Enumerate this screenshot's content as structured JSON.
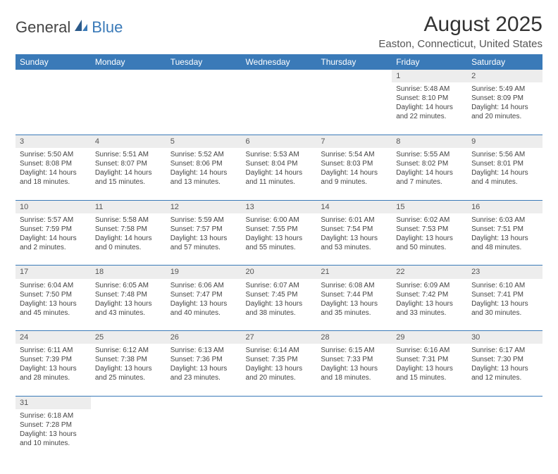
{
  "logo": {
    "text1": "General",
    "text2": "Blue"
  },
  "title": "August 2025",
  "location": "Easton, Connecticut, United States",
  "colors": {
    "header_bg": "#3a7ab8",
    "header_fg": "#ffffff",
    "daynum_bg": "#ededed",
    "border": "#3a7ab8"
  },
  "weekdays": [
    "Sunday",
    "Monday",
    "Tuesday",
    "Wednesday",
    "Thursday",
    "Friday",
    "Saturday"
  ],
  "weeks": [
    [
      null,
      null,
      null,
      null,
      null,
      {
        "n": "1",
        "sr": "Sunrise: 5:48 AM",
        "ss": "Sunset: 8:10 PM",
        "dl": "Daylight: 14 hours and 22 minutes."
      },
      {
        "n": "2",
        "sr": "Sunrise: 5:49 AM",
        "ss": "Sunset: 8:09 PM",
        "dl": "Daylight: 14 hours and 20 minutes."
      }
    ],
    [
      {
        "n": "3",
        "sr": "Sunrise: 5:50 AM",
        "ss": "Sunset: 8:08 PM",
        "dl": "Daylight: 14 hours and 18 minutes."
      },
      {
        "n": "4",
        "sr": "Sunrise: 5:51 AM",
        "ss": "Sunset: 8:07 PM",
        "dl": "Daylight: 14 hours and 15 minutes."
      },
      {
        "n": "5",
        "sr": "Sunrise: 5:52 AM",
        "ss": "Sunset: 8:06 PM",
        "dl": "Daylight: 14 hours and 13 minutes."
      },
      {
        "n": "6",
        "sr": "Sunrise: 5:53 AM",
        "ss": "Sunset: 8:04 PM",
        "dl": "Daylight: 14 hours and 11 minutes."
      },
      {
        "n": "7",
        "sr": "Sunrise: 5:54 AM",
        "ss": "Sunset: 8:03 PM",
        "dl": "Daylight: 14 hours and 9 minutes."
      },
      {
        "n": "8",
        "sr": "Sunrise: 5:55 AM",
        "ss": "Sunset: 8:02 PM",
        "dl": "Daylight: 14 hours and 7 minutes."
      },
      {
        "n": "9",
        "sr": "Sunrise: 5:56 AM",
        "ss": "Sunset: 8:01 PM",
        "dl": "Daylight: 14 hours and 4 minutes."
      }
    ],
    [
      {
        "n": "10",
        "sr": "Sunrise: 5:57 AM",
        "ss": "Sunset: 7:59 PM",
        "dl": "Daylight: 14 hours and 2 minutes."
      },
      {
        "n": "11",
        "sr": "Sunrise: 5:58 AM",
        "ss": "Sunset: 7:58 PM",
        "dl": "Daylight: 14 hours and 0 minutes."
      },
      {
        "n": "12",
        "sr": "Sunrise: 5:59 AM",
        "ss": "Sunset: 7:57 PM",
        "dl": "Daylight: 13 hours and 57 minutes."
      },
      {
        "n": "13",
        "sr": "Sunrise: 6:00 AM",
        "ss": "Sunset: 7:55 PM",
        "dl": "Daylight: 13 hours and 55 minutes."
      },
      {
        "n": "14",
        "sr": "Sunrise: 6:01 AM",
        "ss": "Sunset: 7:54 PM",
        "dl": "Daylight: 13 hours and 53 minutes."
      },
      {
        "n": "15",
        "sr": "Sunrise: 6:02 AM",
        "ss": "Sunset: 7:53 PM",
        "dl": "Daylight: 13 hours and 50 minutes."
      },
      {
        "n": "16",
        "sr": "Sunrise: 6:03 AM",
        "ss": "Sunset: 7:51 PM",
        "dl": "Daylight: 13 hours and 48 minutes."
      }
    ],
    [
      {
        "n": "17",
        "sr": "Sunrise: 6:04 AM",
        "ss": "Sunset: 7:50 PM",
        "dl": "Daylight: 13 hours and 45 minutes."
      },
      {
        "n": "18",
        "sr": "Sunrise: 6:05 AM",
        "ss": "Sunset: 7:48 PM",
        "dl": "Daylight: 13 hours and 43 minutes."
      },
      {
        "n": "19",
        "sr": "Sunrise: 6:06 AM",
        "ss": "Sunset: 7:47 PM",
        "dl": "Daylight: 13 hours and 40 minutes."
      },
      {
        "n": "20",
        "sr": "Sunrise: 6:07 AM",
        "ss": "Sunset: 7:45 PM",
        "dl": "Daylight: 13 hours and 38 minutes."
      },
      {
        "n": "21",
        "sr": "Sunrise: 6:08 AM",
        "ss": "Sunset: 7:44 PM",
        "dl": "Daylight: 13 hours and 35 minutes."
      },
      {
        "n": "22",
        "sr": "Sunrise: 6:09 AM",
        "ss": "Sunset: 7:42 PM",
        "dl": "Daylight: 13 hours and 33 minutes."
      },
      {
        "n": "23",
        "sr": "Sunrise: 6:10 AM",
        "ss": "Sunset: 7:41 PM",
        "dl": "Daylight: 13 hours and 30 minutes."
      }
    ],
    [
      {
        "n": "24",
        "sr": "Sunrise: 6:11 AM",
        "ss": "Sunset: 7:39 PM",
        "dl": "Daylight: 13 hours and 28 minutes."
      },
      {
        "n": "25",
        "sr": "Sunrise: 6:12 AM",
        "ss": "Sunset: 7:38 PM",
        "dl": "Daylight: 13 hours and 25 minutes."
      },
      {
        "n": "26",
        "sr": "Sunrise: 6:13 AM",
        "ss": "Sunset: 7:36 PM",
        "dl": "Daylight: 13 hours and 23 minutes."
      },
      {
        "n": "27",
        "sr": "Sunrise: 6:14 AM",
        "ss": "Sunset: 7:35 PM",
        "dl": "Daylight: 13 hours and 20 minutes."
      },
      {
        "n": "28",
        "sr": "Sunrise: 6:15 AM",
        "ss": "Sunset: 7:33 PM",
        "dl": "Daylight: 13 hours and 18 minutes."
      },
      {
        "n": "29",
        "sr": "Sunrise: 6:16 AM",
        "ss": "Sunset: 7:31 PM",
        "dl": "Daylight: 13 hours and 15 minutes."
      },
      {
        "n": "30",
        "sr": "Sunrise: 6:17 AM",
        "ss": "Sunset: 7:30 PM",
        "dl": "Daylight: 13 hours and 12 minutes."
      }
    ],
    [
      {
        "n": "31",
        "sr": "Sunrise: 6:18 AM",
        "ss": "Sunset: 7:28 PM",
        "dl": "Daylight: 13 hours and 10 minutes."
      },
      null,
      null,
      null,
      null,
      null,
      null
    ]
  ]
}
